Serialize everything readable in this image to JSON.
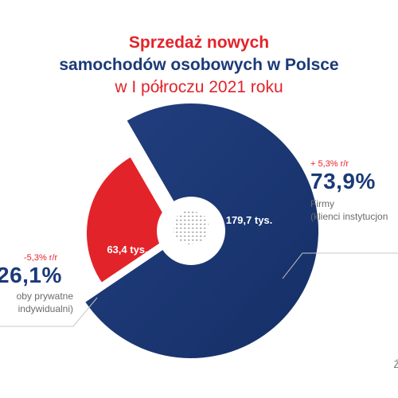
{
  "title": {
    "line1": "Sprzedaż nowych",
    "line2": "samochodów osobowych w Polsce",
    "line3": "w I półroczu 2021 roku"
  },
  "colors": {
    "red": "#e3232a",
    "navy": "#1b3a78",
    "gray": "#6b6b6b"
  },
  "chart_data": {
    "type": "pie",
    "labels": [
      "Osoby prywatne (klienci indywidualni)",
      "Firmy (klienci instytucjonalni)"
    ],
    "values": [
      63.4,
      179.7
    ],
    "value_labels": [
      "63,4 tys.",
      "179,7 tys."
    ],
    "shares": [
      "26,1%",
      "73,9%"
    ],
    "changes": [
      "-5,3% r/r",
      "+ 5,3% r/r"
    ],
    "colors": [
      "#e3232a",
      "#1b3a78"
    ]
  },
  "callouts": {
    "right": {
      "change": "+ 5,3% r/r",
      "share": "73,9%",
      "label1": "Firmy",
      "label2": "(klienci instytucjon"
    },
    "left": {
      "change": "-5,3% r/r",
      "share": "26,1%",
      "label1": "oby prywatne",
      "label2": "indywidualni)"
    }
  },
  "center_icon": "poland-map-icon",
  "corner_text": "Ź"
}
